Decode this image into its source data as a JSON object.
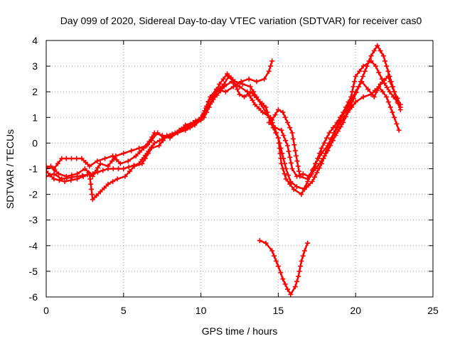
{
  "chart_data": {
    "type": "scatter",
    "title": "Day 099 of 2020, Sidereal Day-to-day VTEC variation (SDTVAR) for receiver cas0",
    "xlabel": "GPS time / hours",
    "ylabel": "SDTVAR / TECUs",
    "xlim": [
      0,
      25
    ],
    "ylim": [
      -6,
      4
    ],
    "xticks": [
      0,
      5,
      10,
      15,
      20,
      25
    ],
    "xtick_labels": [
      "0",
      "5",
      "10",
      "15",
      "20",
      "25"
    ],
    "yticks": [
      -6,
      -5,
      -4,
      -3,
      -2,
      -1,
      0,
      1,
      2,
      3,
      4
    ],
    "ytick_labels": [
      "-6",
      "-5",
      "-4",
      "-3",
      "-2",
      "-1",
      "0",
      "1",
      "2",
      "3",
      "4"
    ],
    "grid": true,
    "marker": "+",
    "color": "#ff0000",
    "series": [
      {
        "name": "track-1",
        "points": [
          [
            0.0,
            -1.3
          ],
          [
            0.5,
            -1.2
          ],
          [
            1.0,
            -1.4
          ],
          [
            2.0,
            -1.3
          ],
          [
            3.0,
            -1.2
          ],
          [
            4.0,
            -1.0
          ],
          [
            5.0,
            -1.0
          ],
          [
            6.0,
            -0.8
          ],
          [
            7.0,
            0.0
          ],
          [
            8.0,
            0.3
          ],
          [
            9.0,
            0.6
          ],
          [
            10.0,
            1.0
          ],
          [
            10.8,
            1.7
          ],
          [
            11.5,
            2.2
          ],
          [
            12.0,
            2.4
          ],
          [
            12.5,
            2.2
          ],
          [
            13.0,
            2.0
          ],
          [
            13.5,
            1.5
          ],
          [
            14.0,
            1.2
          ],
          [
            14.5,
            1.0
          ],
          [
            15.0,
            0.2
          ],
          [
            15.5,
            -1.0
          ],
          [
            15.8,
            -1.5
          ],
          [
            16.2,
            -1.7
          ],
          [
            16.7,
            -1.8
          ],
          [
            17.2,
            -1.5
          ],
          [
            17.8,
            -0.8
          ],
          [
            18.3,
            0.0
          ],
          [
            18.8,
            0.6
          ],
          [
            19.5,
            1.2
          ],
          [
            20.0,
            1.6
          ],
          [
            20.5,
            1.8
          ],
          [
            21.0,
            1.9
          ],
          [
            21.5,
            2.2
          ],
          [
            22.0,
            1.8
          ],
          [
            22.5,
            1.0
          ],
          [
            22.8,
            0.5
          ]
        ]
      },
      {
        "name": "track-2",
        "points": [
          [
            0.0,
            -1.0
          ],
          [
            0.3,
            -0.9
          ],
          [
            0.8,
            -1.2
          ],
          [
            1.3,
            -1.3
          ],
          [
            2.0,
            -1.2
          ],
          [
            2.5,
            -1.0
          ],
          [
            3.0,
            -1.3
          ],
          [
            3.5,
            -0.8
          ],
          [
            4.0,
            -0.9
          ],
          [
            4.5,
            -0.5
          ],
          [
            5.0,
            -0.4
          ],
          [
            5.5,
            -0.3
          ],
          [
            6.0,
            -0.2
          ],
          [
            6.5,
            -0.1
          ],
          [
            7.0,
            0.4
          ],
          [
            7.5,
            0.3
          ],
          [
            8.0,
            0.2
          ],
          [
            8.5,
            0.4
          ],
          [
            9.0,
            0.7
          ],
          [
            9.5,
            0.8
          ],
          [
            10.0,
            0.9
          ],
          [
            10.5,
            1.6
          ],
          [
            11.0,
            2.0
          ],
          [
            11.5,
            2.3
          ],
          [
            11.8,
            2.6
          ],
          [
            12.2,
            2.3
          ],
          [
            12.5,
            1.9
          ],
          [
            12.8,
            1.8
          ],
          [
            13.2,
            2.0
          ],
          [
            13.7,
            1.7
          ],
          [
            14.2,
            1.4
          ],
          [
            14.5,
            0.8
          ],
          [
            15.0,
            0.2
          ],
          [
            15.2,
            -0.8
          ],
          [
            15.5,
            -1.4
          ],
          [
            16.0,
            -1.8
          ],
          [
            16.5,
            -2.0
          ],
          [
            16.9,
            -1.5
          ],
          [
            17.3,
            -1.0
          ],
          [
            17.8,
            -0.2
          ],
          [
            18.3,
            0.4
          ],
          [
            18.8,
            0.8
          ],
          [
            19.2,
            1.2
          ],
          [
            19.7,
            1.8
          ],
          [
            20.0,
            2.6
          ],
          [
            20.5,
            3.0
          ],
          [
            21.0,
            3.2
          ],
          [
            21.3,
            3.0
          ],
          [
            21.7,
            2.5
          ],
          [
            22.2,
            2.0
          ],
          [
            22.7,
            1.6
          ],
          [
            22.9,
            1.4
          ]
        ]
      },
      {
        "name": "track-3",
        "points": [
          [
            0.0,
            -1.1
          ],
          [
            0.5,
            -1.4
          ],
          [
            1.2,
            -1.5
          ],
          [
            2.0,
            -1.4
          ],
          [
            2.8,
            -1.2
          ],
          [
            3.0,
            -2.2
          ],
          [
            3.5,
            -1.9
          ],
          [
            4.0,
            -1.6
          ],
          [
            4.6,
            -1.4
          ],
          [
            5.1,
            -1.3
          ],
          [
            5.7,
            -0.9
          ],
          [
            6.2,
            -0.8
          ],
          [
            6.8,
            -0.2
          ],
          [
            7.3,
            -0.1
          ],
          [
            7.8,
            0.3
          ],
          [
            8.5,
            0.4
          ],
          [
            9.0,
            0.5
          ],
          [
            9.6,
            0.7
          ],
          [
            10.0,
            0.9
          ],
          [
            10.6,
            1.8
          ],
          [
            11.0,
            2.1
          ],
          [
            11.6,
            2.0
          ],
          [
            12.1,
            2.2
          ],
          [
            12.6,
            2.4
          ],
          [
            13.1,
            2.5
          ],
          [
            13.6,
            2.4
          ],
          [
            14.1,
            2.5
          ],
          [
            14.4,
            2.8
          ],
          [
            14.6,
            3.2
          ]
        ]
      },
      {
        "name": "track-4",
        "points": [
          [
            14.4,
            0.8
          ],
          [
            14.8,
            0.6
          ],
          [
            15.2,
            0.5
          ],
          [
            15.6,
            -0.1
          ],
          [
            15.9,
            -1.0
          ],
          [
            16.2,
            -1.3
          ],
          [
            16.6,
            -1.2
          ],
          [
            17.0,
            -1.3
          ],
          [
            17.4,
            -0.8
          ],
          [
            17.8,
            -0.4
          ],
          [
            18.2,
            -0.1
          ],
          [
            18.6,
            0.4
          ],
          [
            19.0,
            0.9
          ],
          [
            19.5,
            1.4
          ],
          [
            20.0,
            2.0
          ],
          [
            20.4,
            2.4
          ],
          [
            20.8,
            2.1
          ],
          [
            21.2,
            1.8
          ],
          [
            21.6,
            2.3
          ],
          [
            22.1,
            2.6
          ],
          [
            22.5,
            2.0
          ],
          [
            22.9,
            1.5
          ]
        ]
      },
      {
        "name": "track-5",
        "points": [
          [
            0.0,
            -0.9
          ],
          [
            0.5,
            -1.0
          ],
          [
            1.0,
            -0.6
          ],
          [
            1.3,
            -0.6
          ],
          [
            2.3,
            -0.6
          ],
          [
            2.8,
            -0.9
          ],
          [
            3.3,
            -0.7
          ],
          [
            3.8,
            -0.6
          ],
          [
            4.3,
            -0.5
          ],
          [
            4.8,
            -0.8
          ],
          [
            5.3,
            -0.7
          ],
          [
            5.8,
            -0.5
          ],
          [
            6.3,
            -0.2
          ],
          [
            6.8,
            0.1
          ],
          [
            7.2,
            0.4
          ],
          [
            7.6,
            0.2
          ],
          [
            8.1,
            0.3
          ],
          [
            8.6,
            0.5
          ],
          [
            9.1,
            0.6
          ],
          [
            9.6,
            0.8
          ],
          [
            10.2,
            1.0
          ],
          [
            10.7,
            1.6
          ],
          [
            11.2,
            2.3
          ],
          [
            11.7,
            2.7
          ],
          [
            12.2,
            2.4
          ],
          [
            12.7,
            2.3
          ],
          [
            13.2,
            2.2
          ],
          [
            13.6,
            1.8
          ],
          [
            13.9,
            1.5
          ],
          [
            14.2,
            1.2
          ],
          [
            14.6,
            0.9
          ],
          [
            15.0,
            1.3
          ],
          [
            15.3,
            1.2
          ],
          [
            15.6,
            0.8
          ],
          [
            15.9,
            0.4
          ],
          [
            16.1,
            -0.3
          ],
          [
            16.4,
            -1.3
          ],
          [
            16.9,
            -1.4
          ],
          [
            17.4,
            -1.0
          ],
          [
            17.8,
            -0.7
          ],
          [
            18.2,
            -0.3
          ],
          [
            18.7,
            0.3
          ],
          [
            19.2,
            0.8
          ],
          [
            19.7,
            1.5
          ],
          [
            20.2,
            2.2
          ],
          [
            20.6,
            2.8
          ],
          [
            21.0,
            3.4
          ],
          [
            21.4,
            3.8
          ],
          [
            21.8,
            3.4
          ],
          [
            22.2,
            2.6
          ],
          [
            22.6,
            1.8
          ],
          [
            22.9,
            1.3
          ]
        ]
      },
      {
        "name": "track-6",
        "points": [
          [
            13.8,
            -3.8
          ],
          [
            14.2,
            -3.9
          ],
          [
            14.6,
            -4.2
          ],
          [
            15.0,
            -4.8
          ],
          [
            15.3,
            -5.3
          ],
          [
            15.6,
            -5.7
          ],
          [
            15.8,
            -5.9
          ],
          [
            16.1,
            -5.6
          ],
          [
            16.3,
            -5.2
          ],
          [
            16.5,
            -4.6
          ],
          [
            16.7,
            -4.2
          ],
          [
            16.9,
            -3.9
          ]
        ]
      }
    ]
  }
}
